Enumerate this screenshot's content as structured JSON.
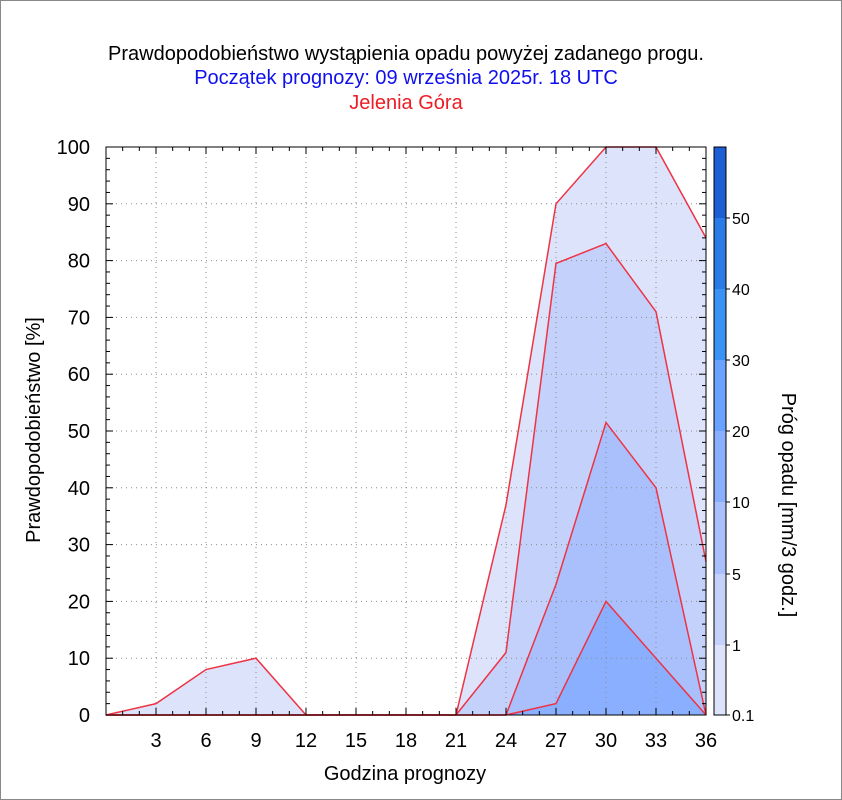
{
  "titles": {
    "line1": "Prawdopodobieństwo wystąpienia opadu powyżej zadanego progu.",
    "line2": "Początek prognozy: 09 września 2025r. 18 UTC",
    "line3": "Jelenia Góra"
  },
  "colors": {
    "title_line1": "#000000",
    "title_line2": "#1010ee",
    "title_line3": "#ee1c24",
    "outline": "#ee3344",
    "band_0_1": "#dde3fb",
    "band_1": "#c4d2fb",
    "band_5": "#a9c0fc",
    "band_10": "#8aafff",
    "band_20": "#6aa2ff",
    "band_30": "#3b92f5",
    "band_40": "#2a7be6",
    "band_50": "#1c5ed4",
    "band_60": "#1440b8"
  },
  "chart_data": {
    "type": "area",
    "xlabel": "Godzina prognozy",
    "ylabel": "Prawdopodobieństwo [%]",
    "x": [
      0,
      3,
      6,
      9,
      12,
      15,
      18,
      21,
      24,
      27,
      30,
      33,
      36
    ],
    "xticks": [
      3,
      6,
      9,
      12,
      15,
      18,
      21,
      24,
      27,
      30,
      33,
      36
    ],
    "xlim": [
      0,
      36
    ],
    "ylim": [
      0,
      100
    ],
    "yticks": [
      0,
      10,
      20,
      30,
      40,
      50,
      60,
      70,
      80,
      90,
      100
    ],
    "grid": true,
    "series": [
      {
        "name": "0.1",
        "values": [
          0,
          2,
          8,
          10,
          0,
          0,
          0,
          0,
          37,
          90,
          100,
          100,
          84
        ]
      },
      {
        "name": "1",
        "values": [
          0,
          0,
          0,
          0,
          0,
          0,
          0,
          0,
          11,
          79.5,
          83,
          71,
          27
        ]
      },
      {
        "name": "5",
        "values": [
          0,
          0,
          0,
          0,
          0,
          0,
          0,
          0,
          0,
          23,
          51.5,
          40,
          0
        ]
      },
      {
        "name": "10",
        "values": [
          0,
          0,
          0,
          0,
          0,
          0,
          0,
          0,
          0,
          2,
          20,
          10,
          0
        ]
      }
    ],
    "colorbar": {
      "label": "Próg opadu [mm/3 godz.]",
      "levels": [
        "0.1",
        "1",
        "5",
        "10",
        "20",
        "30",
        "40",
        "50"
      ]
    }
  }
}
